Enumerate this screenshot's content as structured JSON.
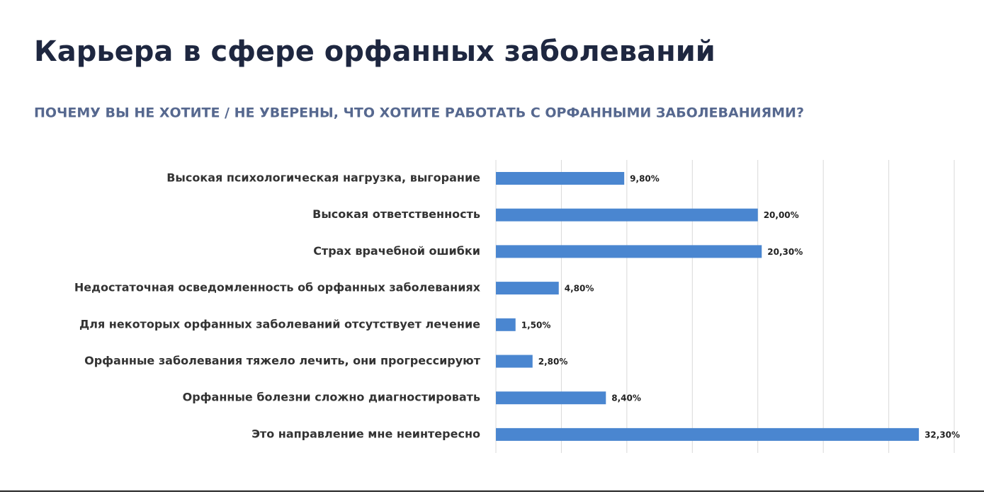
{
  "chart_data": {
    "type": "bar",
    "orientation": "horizontal",
    "title": "Карьера в сфере орфанных заболеваний",
    "subtitle": "ПОЧЕМУ ВЫ НЕ ХОТИТЕ / НЕ УВЕРЕНЫ, ЧТО ХОТИТЕ РАБОТАТЬ С ОРФАННЫМИ ЗАБОЛЕВАНИЯМИ?",
    "categories": [
      "Высокая психологическая нагрузка, выгорание",
      "Высокая ответственность",
      "Страх врачебной ошибки",
      "Недостаточная осведомленность об орфанных заболеваниях",
      "Для некоторых орфанных заболеваний отсутствует лечение",
      "Орфанные заболевания тяжело лечить, они прогрессируют",
      "Орфанные болезни сложно диагностировать",
      "Это направление мне неинтересно"
    ],
    "values": [
      9.8,
      20.0,
      20.3,
      4.8,
      1.5,
      2.8,
      8.4,
      32.3
    ],
    "value_labels": [
      "9,80%",
      "20,00%",
      "20,30%",
      "4,80%",
      "1,50%",
      "2,80%",
      "8,40%",
      "32,30%"
    ],
    "color": "#4a86d0",
    "xlim": [
      0,
      35
    ],
    "xticks": [
      0,
      5,
      10,
      15,
      20,
      25,
      30,
      35
    ],
    "grid": true
  }
}
